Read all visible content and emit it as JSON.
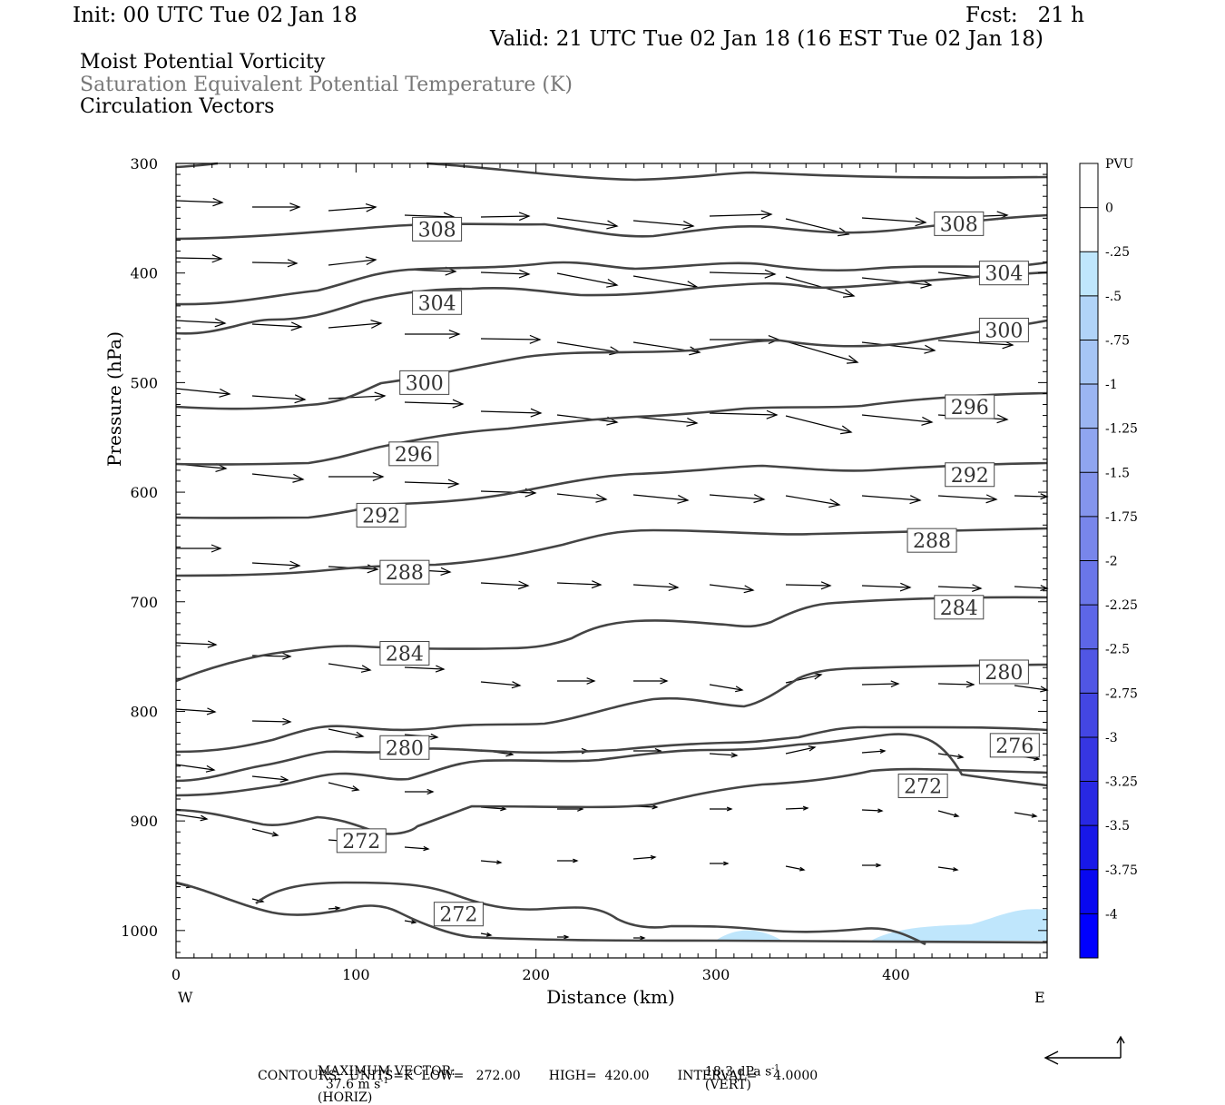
{
  "header": {
    "init": "Init: 00 UTC Tue 02 Jan 18",
    "fcst": "Fcst:   21 h",
    "valid": "Valid: 21 UTC Tue 02 Jan 18 (16 EST Tue 02 Jan 18)",
    "field1": "Moist Potential Vorticity",
    "field2": "Saturation Equivalent Potential Temperature (K)",
    "field3": "Circulation Vectors"
  },
  "footer": {
    "max_vector_label": "MAXIMUM VECTOR:",
    "horiz_value": "37.6 m s",
    "horiz_exp": "-1",
    "horiz_suffix": "(HORIZ)",
    "vert_value": "18.3 dPa s",
    "vert_exp": "-1",
    "vert_suffix": "(VERT)",
    "contours": "CONTOURS:  UNITS=K  LOW=   272.00       HIGH=  420.00       INTERVAL=    4.0000"
  },
  "chart_data": {
    "type": "cross-section",
    "xlabel": "Distance (km)",
    "ylabel": "Pressure (hPa)",
    "x_left_label": "W",
    "x_right_label": "E",
    "xlim": [
      0,
      484
    ],
    "ylim": [
      1025,
      300
    ],
    "x_ticks": [
      0,
      100,
      200,
      300,
      400
    ],
    "y_ticks": [
      300,
      400,
      500,
      600,
      700,
      800,
      900,
      1000
    ],
    "colorbar": {
      "units": "PVU",
      "levels": [
        "0",
        "-.25",
        "-.5",
        "-.75",
        "-1",
        "-1.25",
        "-1.5",
        "-1.75",
        "-2",
        "-2.25",
        "-2.5",
        "-2.75",
        "-3",
        "-3.25",
        "-3.5",
        "-3.75",
        "-4"
      ],
      "colors": [
        "#ffffff",
        "#ffffff",
        "#bfe6fc",
        "#b1d4f8",
        "#a6c5f5",
        "#9bb5f2",
        "#8fa5f0",
        "#8495ed",
        "#7886eb",
        "#6a76e9",
        "#5d66e7",
        "#5056e4",
        "#4346e3",
        "#3636e2",
        "#2828e3",
        "#1818e8",
        "#0808f0",
        "#0000ff"
      ]
    },
    "contour_labels": [
      {
        "value": "308",
        "x": 145,
        "p": 360
      },
      {
        "value": "308",
        "x": 435,
        "p": 355
      },
      {
        "value": "304",
        "x": 145,
        "p": 427
      },
      {
        "value": "304",
        "x": 460,
        "p": 400
      },
      {
        "value": "300",
        "x": 138,
        "p": 500
      },
      {
        "value": "300",
        "x": 460,
        "p": 452
      },
      {
        "value": "296",
        "x": 132,
        "p": 565
      },
      {
        "value": "296",
        "x": 441,
        "p": 522
      },
      {
        "value": "292",
        "x": 114,
        "p": 621
      },
      {
        "value": "292",
        "x": 441,
        "p": 584
      },
      {
        "value": "288",
        "x": 127,
        "p": 673
      },
      {
        "value": "288",
        "x": 420,
        "p": 644
      },
      {
        "value": "284",
        "x": 127,
        "p": 747
      },
      {
        "value": "284",
        "x": 435,
        "p": 705
      },
      {
        "value": "280",
        "x": 127,
        "p": 833
      },
      {
        "value": "280",
        "x": 460,
        "p": 764
      },
      {
        "value": "276",
        "x": 466,
        "p": 831
      },
      {
        "value": "272",
        "x": 415,
        "p": 868
      },
      {
        "value": "272",
        "x": 103,
        "p": 918
      },
      {
        "value": "272",
        "x": 157,
        "p": 985
      }
    ]
  }
}
